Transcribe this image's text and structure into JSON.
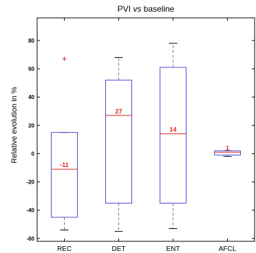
{
  "chart_data": {
    "type": "box",
    "title_main": "PVI ",
    "title_italic": "vs",
    "title_rest": " baseline",
    "xlabel": "",
    "ylabel": "Relative evolution in %",
    "ylim": [
      -62,
      96
    ],
    "yticks": [
      -60,
      -40,
      -20,
      0,
      20,
      40,
      60,
      80
    ],
    "categories": [
      "REC",
      "DET",
      "ENT",
      "AFCL"
    ],
    "boxes": [
      {
        "category": "REC",
        "whisker_low": -54,
        "q1": -45,
        "median": -11,
        "q3": 15,
        "whisker_high": 15,
        "outliers": [
          67
        ],
        "median_label": "-11"
      },
      {
        "category": "DET",
        "whisker_low": -55,
        "q1": -35,
        "median": 27,
        "q3": 52,
        "whisker_high": 68,
        "outliers": [],
        "median_label": "27"
      },
      {
        "category": "ENT",
        "whisker_low": -53,
        "q1": -35,
        "median": 14,
        "q3": 61,
        "whisker_high": 78,
        "outliers": [],
        "median_label": "14"
      },
      {
        "category": "AFCL",
        "whisker_low": -2,
        "q1": -1,
        "median": 1,
        "q3": 2,
        "whisker_high": 2,
        "outliers": [],
        "median_label": "1"
      }
    ],
    "colors": {
      "box": "#4b4bd9",
      "median": "#e02020",
      "whisker": "#7a7a7a",
      "outlier": "#e02020",
      "axis": "#000000"
    }
  }
}
